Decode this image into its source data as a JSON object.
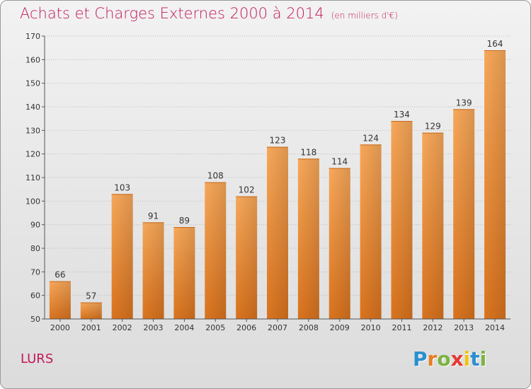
{
  "title": {
    "main": "Achats et Charges Externes 2000 à 2014",
    "unit": "(en milliers d'€)"
  },
  "city": "LURS",
  "logo": {
    "letters": [
      "P",
      "r",
      "o",
      "x",
      "i",
      "t",
      "i"
    ],
    "colors": [
      "#2a8fd0",
      "#e67e22",
      "#7cb342",
      "#e53935",
      "#f1c40f",
      "#2a8fd0",
      "#7cb342"
    ]
  },
  "colors": {
    "bar_light": "#f7a85a",
    "bar_dark": "#d9731e",
    "axis": "#555555",
    "grid": "#bdbdbd"
  },
  "chart_data": {
    "type": "bar",
    "title": "Achats et Charges Externes 2000 à 2014",
    "xlabel": "",
    "ylabel": "(en milliers d'€)",
    "ylim": [
      50,
      170
    ],
    "yticks": [
      50,
      60,
      70,
      80,
      90,
      100,
      110,
      120,
      130,
      140,
      150,
      160,
      170
    ],
    "grid": true,
    "categories": [
      "2000",
      "2001",
      "2002",
      "2003",
      "2004",
      "2005",
      "2006",
      "2007",
      "2008",
      "2009",
      "2010",
      "2011",
      "2012",
      "2013",
      "2014"
    ],
    "values": [
      66,
      57,
      103,
      91,
      89,
      108,
      102,
      123,
      118,
      114,
      124,
      134,
      129,
      139,
      164
    ]
  }
}
